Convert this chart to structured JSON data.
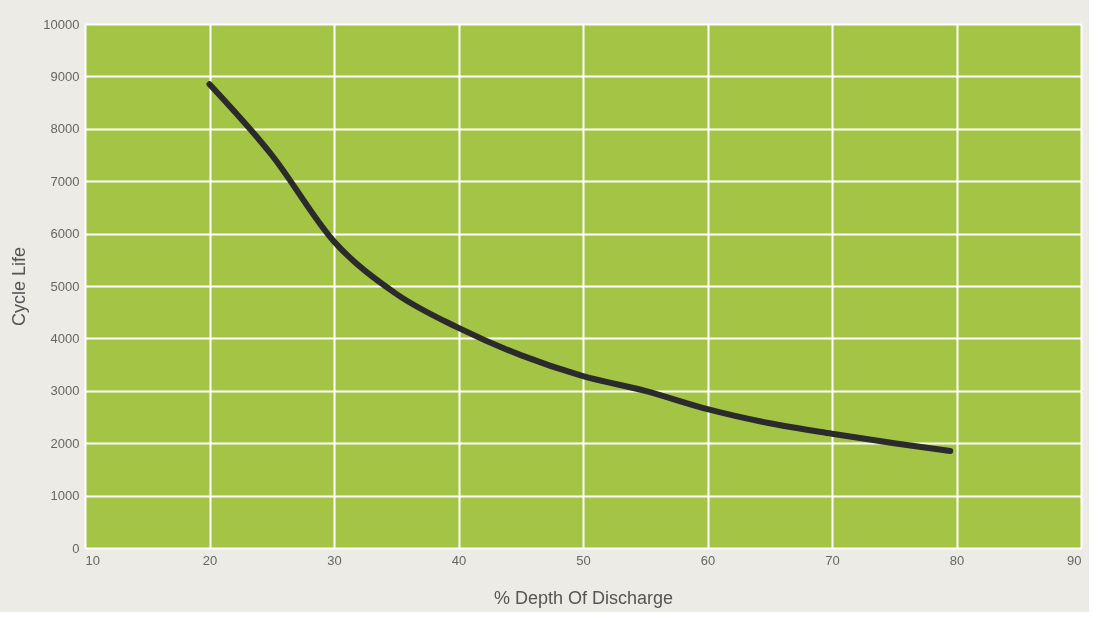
{
  "chart_data": {
    "type": "line",
    "xlabel": "% Depth Of Discharge",
    "ylabel": "Cycle Life",
    "xlim": [
      10,
      90
    ],
    "xticks": [
      10,
      20,
      30,
      40,
      50,
      60,
      70,
      80,
      90
    ],
    "ylim": [
      0,
      10000
    ],
    "yticks": [
      0,
      1000,
      2000,
      3000,
      4000,
      5000,
      6000,
      7000,
      8000,
      9000,
      10000
    ],
    "grid": true,
    "series": [
      {
        "color": "#2b2b2b",
        "x": [
          20,
          25,
          30,
          35,
          40,
          45,
          50,
          55,
          60,
          65,
          70,
          75,
          79.5
        ],
        "values": [
          8850,
          7500,
          5850,
          4850,
          4200,
          3680,
          3280,
          3000,
          2650,
          2380,
          2180,
          2000,
          1850
        ]
      }
    ]
  }
}
